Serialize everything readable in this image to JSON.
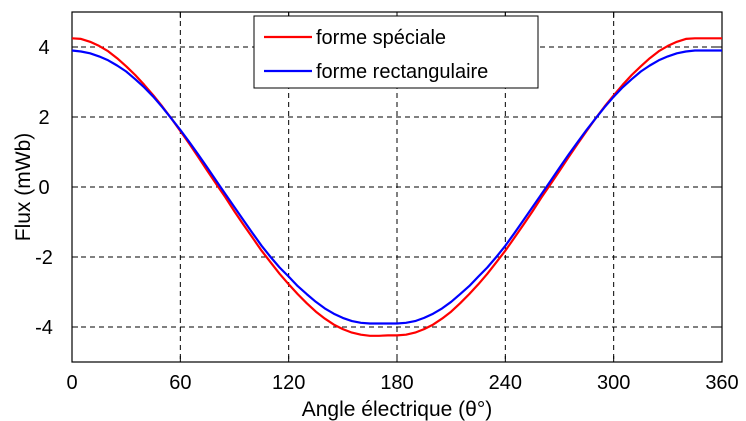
{
  "chart_data": {
    "type": "line",
    "title": "",
    "xlabel": "Angle électrique (θ°)",
    "ylabel": "Flux (mWb)",
    "xlim": [
      0,
      360
    ],
    "ylim": [
      -5,
      5
    ],
    "xticks": [
      0,
      60,
      120,
      180,
      240,
      300,
      360
    ],
    "yticks": [
      -4,
      -2,
      0,
      2,
      4
    ],
    "grid": true,
    "legend_position": "top-center",
    "series": [
      {
        "name": "forme spéciale",
        "color": "#ff0000",
        "x": [
          0,
          5,
          10,
          15,
          20,
          25,
          30,
          35,
          40,
          45,
          50,
          55,
          60,
          65,
          70,
          75,
          80,
          85,
          90,
          95,
          100,
          105,
          110,
          115,
          120,
          125,
          130,
          135,
          140,
          145,
          150,
          155,
          160,
          165,
          170,
          175,
          180,
          185,
          190,
          195,
          200,
          205,
          210,
          215,
          220,
          225,
          230,
          235,
          240,
          245,
          250,
          255,
          260,
          265,
          270,
          275,
          280,
          285,
          290,
          295,
          300,
          305,
          310,
          315,
          320,
          325,
          330,
          335,
          340,
          345,
          350,
          355,
          360
        ],
        "values": [
          4.25,
          4.23,
          4.15,
          4.03,
          3.88,
          3.68,
          3.45,
          3.2,
          2.92,
          2.62,
          2.3,
          1.96,
          1.6,
          1.23,
          0.85,
          0.46,
          0.08,
          -0.3,
          -0.7,
          -1.08,
          -1.45,
          -1.82,
          -2.15,
          -2.48,
          -2.78,
          -3.06,
          -3.32,
          -3.56,
          -3.76,
          -3.93,
          -4.06,
          -4.16,
          -4.22,
          -4.25,
          -4.25,
          -4.24,
          -4.24,
          -4.22,
          -4.16,
          -4.06,
          -3.93,
          -3.76,
          -3.56,
          -3.32,
          -3.06,
          -2.78,
          -2.48,
          -2.15,
          -1.82,
          -1.45,
          -1.08,
          -0.7,
          -0.3,
          0.08,
          0.46,
          0.85,
          1.23,
          1.6,
          1.96,
          2.3,
          2.62,
          2.92,
          3.2,
          3.45,
          3.68,
          3.88,
          4.03,
          4.15,
          4.23,
          4.25,
          4.25,
          4.25,
          4.25
        ]
      },
      {
        "name": "forme rectangulaire",
        "color": "#0000ff",
        "x": [
          0,
          5,
          10,
          15,
          20,
          25,
          30,
          35,
          40,
          45,
          50,
          55,
          60,
          65,
          70,
          75,
          80,
          85,
          90,
          95,
          100,
          105,
          110,
          115,
          120,
          125,
          130,
          135,
          140,
          145,
          150,
          155,
          160,
          165,
          170,
          175,
          180,
          185,
          190,
          195,
          200,
          205,
          210,
          215,
          220,
          225,
          230,
          235,
          240,
          245,
          250,
          255,
          260,
          265,
          270,
          275,
          280,
          285,
          290,
          295,
          300,
          305,
          310,
          315,
          320,
          325,
          330,
          335,
          340,
          345,
          350,
          355,
          360
        ],
        "values": [
          3.9,
          3.87,
          3.82,
          3.73,
          3.62,
          3.47,
          3.3,
          3.08,
          2.85,
          2.58,
          2.28,
          1.96,
          1.63,
          1.28,
          0.92,
          0.55,
          0.17,
          -0.21,
          -0.58,
          -0.95,
          -1.32,
          -1.68,
          -2.0,
          -2.3,
          -2.56,
          -2.83,
          -3.06,
          -3.28,
          -3.47,
          -3.62,
          -3.74,
          -3.83,
          -3.88,
          -3.9,
          -3.9,
          -3.9,
          -3.9,
          -3.88,
          -3.83,
          -3.74,
          -3.62,
          -3.47,
          -3.28,
          -3.06,
          -2.83,
          -2.56,
          -2.3,
          -2.0,
          -1.68,
          -1.32,
          -0.95,
          -0.58,
          -0.21,
          0.17,
          0.55,
          0.92,
          1.28,
          1.63,
          1.96,
          2.28,
          2.58,
          2.85,
          3.08,
          3.3,
          3.47,
          3.62,
          3.73,
          3.82,
          3.87,
          3.9,
          3.9,
          3.9,
          3.9
        ]
      }
    ]
  }
}
